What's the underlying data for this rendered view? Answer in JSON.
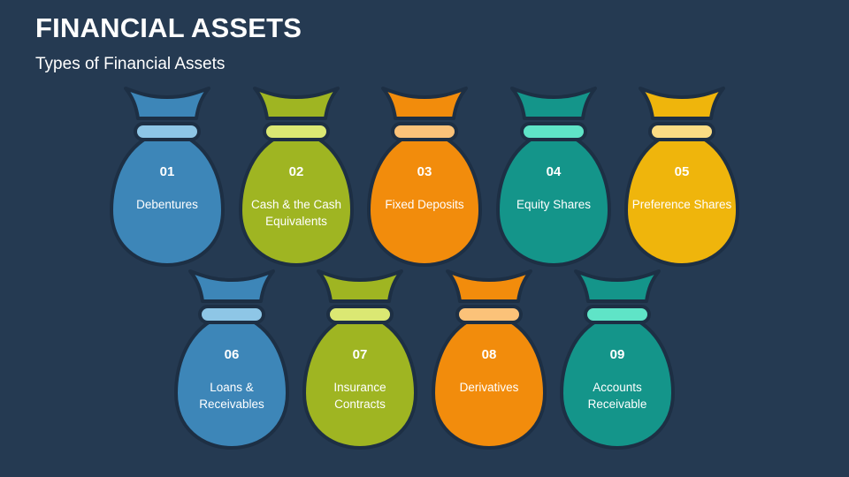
{
  "header": {
    "title": "FINANCIAL ASSETS",
    "subtitle": "Types of Financial Assets"
  },
  "colors": {
    "background": "#253a52",
    "outline": "#1d2f44"
  },
  "items": [
    {
      "number": "01",
      "label": "Debentures",
      "color": "#3d86b8",
      "neck": "#8ec6e6"
    },
    {
      "number": "02",
      "label": "Cash & the Cash Equivalents",
      "color": "#9fb522",
      "neck": "#dbe873"
    },
    {
      "number": "03",
      "label": "Fixed Deposits",
      "color": "#f28c0c",
      "neck": "#fbc279"
    },
    {
      "number": "04",
      "label": "Equity Shares",
      "color": "#14958a",
      "neck": "#5fe4c7"
    },
    {
      "number": "05",
      "label": "Preference Shares",
      "color": "#efb50c",
      "neck": "#fbdc84"
    },
    {
      "number": "06",
      "label": "Loans & Receivables",
      "color": "#3d86b8",
      "neck": "#8ec6e6"
    },
    {
      "number": "07",
      "label": "Insurance Contracts",
      "color": "#9fb522",
      "neck": "#dbe873"
    },
    {
      "number": "08",
      "label": "Derivatives",
      "color": "#f28c0c",
      "neck": "#fbc279"
    },
    {
      "number": "09",
      "label": "Accounts Receivable",
      "color": "#14958a",
      "neck": "#5fe4c7"
    }
  ]
}
